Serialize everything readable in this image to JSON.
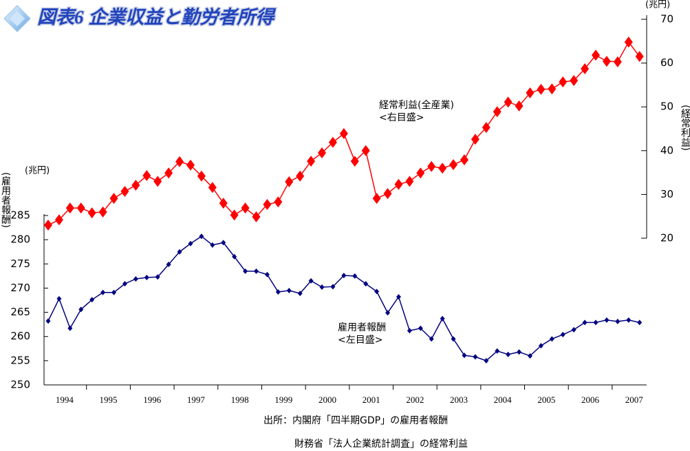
{
  "chart_data": {
    "type": "line",
    "title": "図表6 企業収益と勤労者所得",
    "categories": [
      null,
      "1994",
      null,
      null,
      null,
      "1995",
      null,
      null,
      null,
      "1996",
      null,
      null,
      null,
      "1997",
      null,
      null,
      null,
      "1998",
      null,
      null,
      null,
      "1999",
      null,
      null,
      null,
      "2000",
      null,
      null,
      null,
      "2001",
      null,
      null,
      null,
      "2002",
      null,
      null,
      null,
      "2003",
      null,
      null,
      null,
      "2004",
      null,
      null,
      null,
      "2005",
      null,
      null,
      null,
      "2006",
      null,
      null,
      null,
      "2007",
      null
    ],
    "series": [
      {
        "name": "経常利益(全産業)",
        "color": "#ff0000",
        "axis": "y2",
        "values": [
          23.0,
          24.2,
          26.9,
          26.9,
          25.8,
          26.0,
          29.1,
          30.7,
          32.1,
          34.3,
          33.0,
          34.9,
          37.5,
          36.7,
          34.2,
          31.6,
          28.0,
          25.3,
          26.9,
          24.9,
          27.7,
          28.3,
          32.9,
          34.2,
          37.6,
          39.5,
          41.9,
          43.9,
          37.6,
          40.0,
          29.1,
          30.2,
          32.3,
          33.0,
          34.9,
          36.4,
          36.0,
          36.8,
          37.9,
          42.6,
          45.3,
          48.9,
          51.1,
          50.2,
          53.2,
          54.0,
          54.1,
          55.7,
          56.0,
          58.7,
          61.8,
          60.4,
          60.3,
          64.8,
          61.5
        ]
      },
      {
        "name": "雇用者報酬",
        "color": "#000080",
        "axis": "y",
        "values": [
          263.2,
          267.8,
          261.7,
          265.6,
          267.6,
          269.1,
          269.1,
          270.9,
          271.9,
          272.2,
          272.3,
          274.9,
          277.5,
          279.2,
          280.7,
          278.9,
          279.4,
          276.5,
          273.5,
          273.5,
          272.8,
          269.2,
          269.5,
          268.9,
          271.5,
          270.2,
          270.3,
          272.6,
          272.5,
          270.9,
          269.3,
          264.9,
          268.2,
          261.2,
          261.7,
          259.5,
          263.7,
          259.5,
          256.1,
          255.8,
          255.0,
          257.0,
          256.3,
          256.8,
          256.0,
          258.1,
          259.5,
          260.4,
          261.4,
          262.9,
          262.9,
          263.4,
          263.1,
          263.4,
          262.9
        ]
      }
    ],
    "ylim": [
      250,
      285
    ],
    "yticks": [
      250,
      255,
      260,
      265,
      270,
      275,
      280,
      285
    ],
    "y2lim": [
      20,
      70
    ],
    "y2ticks": [
      20,
      30,
      40,
      50,
      60,
      70
    ],
    "y_unit": "(兆円)",
    "y2_unit": "(兆円)",
    "ylabel": "(雇用者報酬)",
    "y2label": "(経常利益)",
    "annotations": [
      "<右目盛>",
      "<左目盛>"
    ],
    "source": [
      "出所：内閣府「四半期GDP」の雇用者報酬",
      "財務省「法人企業統計調査」の経常利益"
    ]
  }
}
